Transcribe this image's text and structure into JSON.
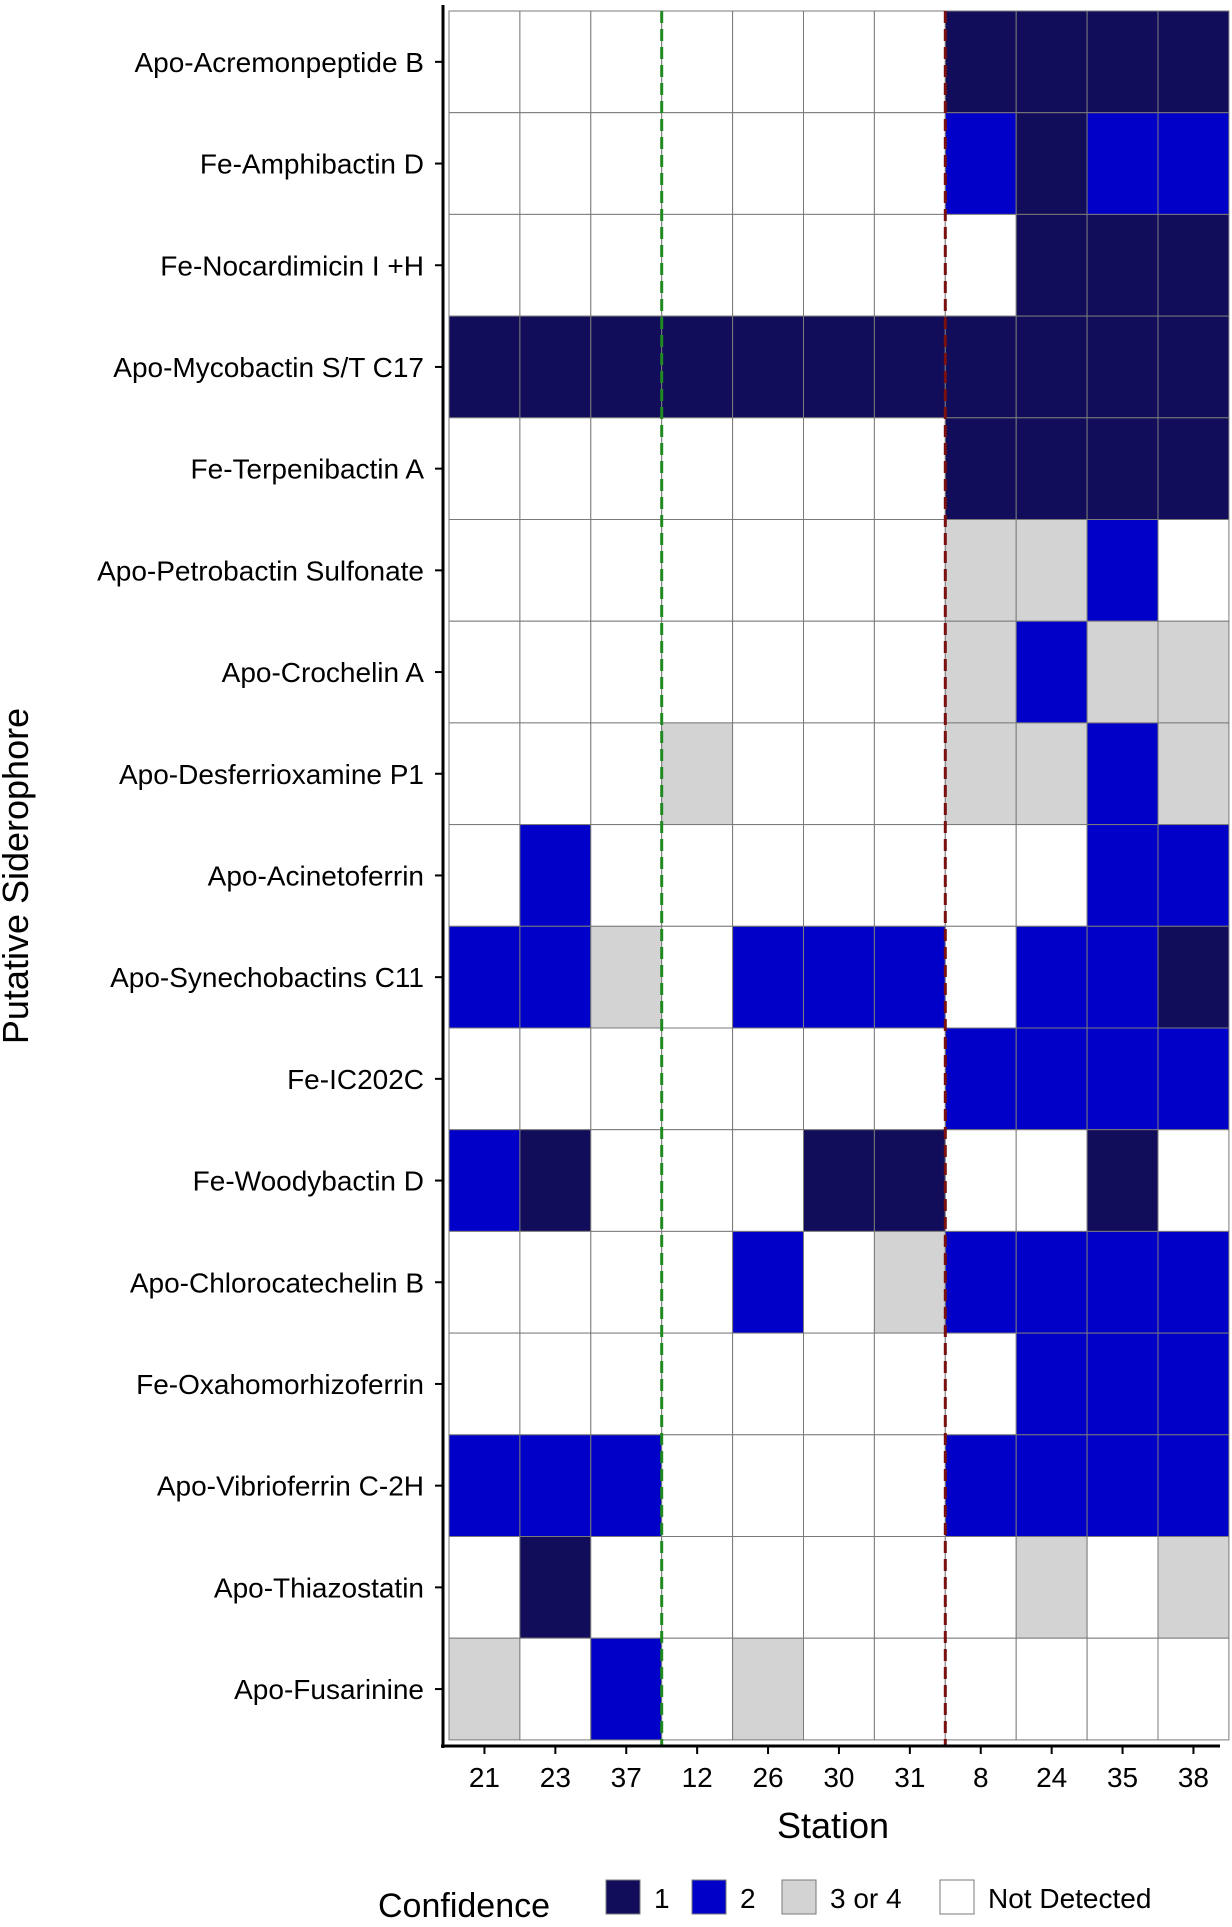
{
  "chart_data": {
    "type": "heatmap",
    "xlabel": "Station",
    "ylabel": "Putative Siderophore",
    "x_categories": [
      "21",
      "23",
      "37",
      "12",
      "26",
      "30",
      "31",
      "8",
      "24",
      "35",
      "38"
    ],
    "y_categories": [
      "Apo-Acremonpeptide B",
      "Fe-Amphibactin D",
      "Fe-Nocardimicin I +H",
      "Apo-Mycobactin S/T C17",
      "Fe-Terpenibactin A",
      "Apo-Petrobactin Sulfonate",
      "Apo-Crochelin A",
      "Apo-Desferrioxamine P1",
      "Apo-Acinetoferrin",
      "Apo-Synechobactins C11",
      "Fe-IC202C",
      "Fe-Woodybactin D",
      "Apo-Chlorocatechelin B",
      "Fe-Oxahomorhizoferrin",
      "Apo-Vibrioferrin C-2H",
      "Apo-Thiazostatin",
      "Apo-Fusarinine"
    ],
    "values": [
      [
        "ND",
        "ND",
        "ND",
        "ND",
        "ND",
        "ND",
        "ND",
        "1",
        "1",
        "1",
        "1"
      ],
      [
        "ND",
        "ND",
        "ND",
        "ND",
        "ND",
        "ND",
        "ND",
        "2",
        "1",
        "2",
        "2"
      ],
      [
        "ND",
        "ND",
        "ND",
        "ND",
        "ND",
        "ND",
        "ND",
        "ND",
        "1",
        "1",
        "1"
      ],
      [
        "1",
        "1",
        "1",
        "1",
        "1",
        "1",
        "1",
        "1",
        "1",
        "1",
        "1"
      ],
      [
        "ND",
        "ND",
        "ND",
        "ND",
        "ND",
        "ND",
        "ND",
        "1",
        "1",
        "1",
        "1"
      ],
      [
        "ND",
        "ND",
        "ND",
        "ND",
        "ND",
        "ND",
        "ND",
        "3",
        "3",
        "2",
        "ND"
      ],
      [
        "ND",
        "ND",
        "ND",
        "ND",
        "ND",
        "ND",
        "ND",
        "3",
        "2",
        "3",
        "3"
      ],
      [
        "ND",
        "ND",
        "ND",
        "3",
        "ND",
        "ND",
        "ND",
        "3",
        "3",
        "2",
        "3"
      ],
      [
        "ND",
        "2",
        "ND",
        "ND",
        "ND",
        "ND",
        "ND",
        "ND",
        "ND",
        "2",
        "2"
      ],
      [
        "2",
        "2",
        "3",
        "ND",
        "2",
        "2",
        "2",
        "ND",
        "2",
        "2",
        "1"
      ],
      [
        "ND",
        "ND",
        "ND",
        "ND",
        "ND",
        "ND",
        "ND",
        "2",
        "2",
        "2",
        "2"
      ],
      [
        "2",
        "1",
        "ND",
        "ND",
        "ND",
        "1",
        "1",
        "ND",
        "ND",
        "1",
        "ND"
      ],
      [
        "ND",
        "ND",
        "ND",
        "ND",
        "2",
        "ND",
        "3",
        "2",
        "2",
        "2",
        "2"
      ],
      [
        "ND",
        "ND",
        "ND",
        "ND",
        "ND",
        "ND",
        "ND",
        "ND",
        "2",
        "2",
        "2"
      ],
      [
        "2",
        "2",
        "2",
        "ND",
        "ND",
        "ND",
        "ND",
        "2",
        "2",
        "2",
        "2"
      ],
      [
        "ND",
        "1",
        "ND",
        "ND",
        "ND",
        "ND",
        "ND",
        "ND",
        "3",
        "ND",
        "3"
      ],
      [
        "3",
        "ND",
        "2",
        "ND",
        "3",
        "ND",
        "ND",
        "ND",
        "ND",
        "ND",
        "ND"
      ]
    ],
    "legend": {
      "title": "Confidence",
      "placement": "bottom",
      "entries": [
        {
          "key": "1",
          "label": "1",
          "color": "#120d5a"
        },
        {
          "key": "2",
          "label": "2",
          "color": "#0000c8"
        },
        {
          "key": "3",
          "label": "3 or 4",
          "color": "#d3d3d3"
        },
        {
          "key": "ND",
          "label": "Not Detected",
          "color": "#ffffff"
        }
      ]
    },
    "dividers": [
      {
        "after_station": "37",
        "color": "#1f8a1f",
        "style": "dashed"
      },
      {
        "after_station": "31",
        "color": "#7a1010",
        "style": "dashed"
      }
    ],
    "grid": true
  }
}
